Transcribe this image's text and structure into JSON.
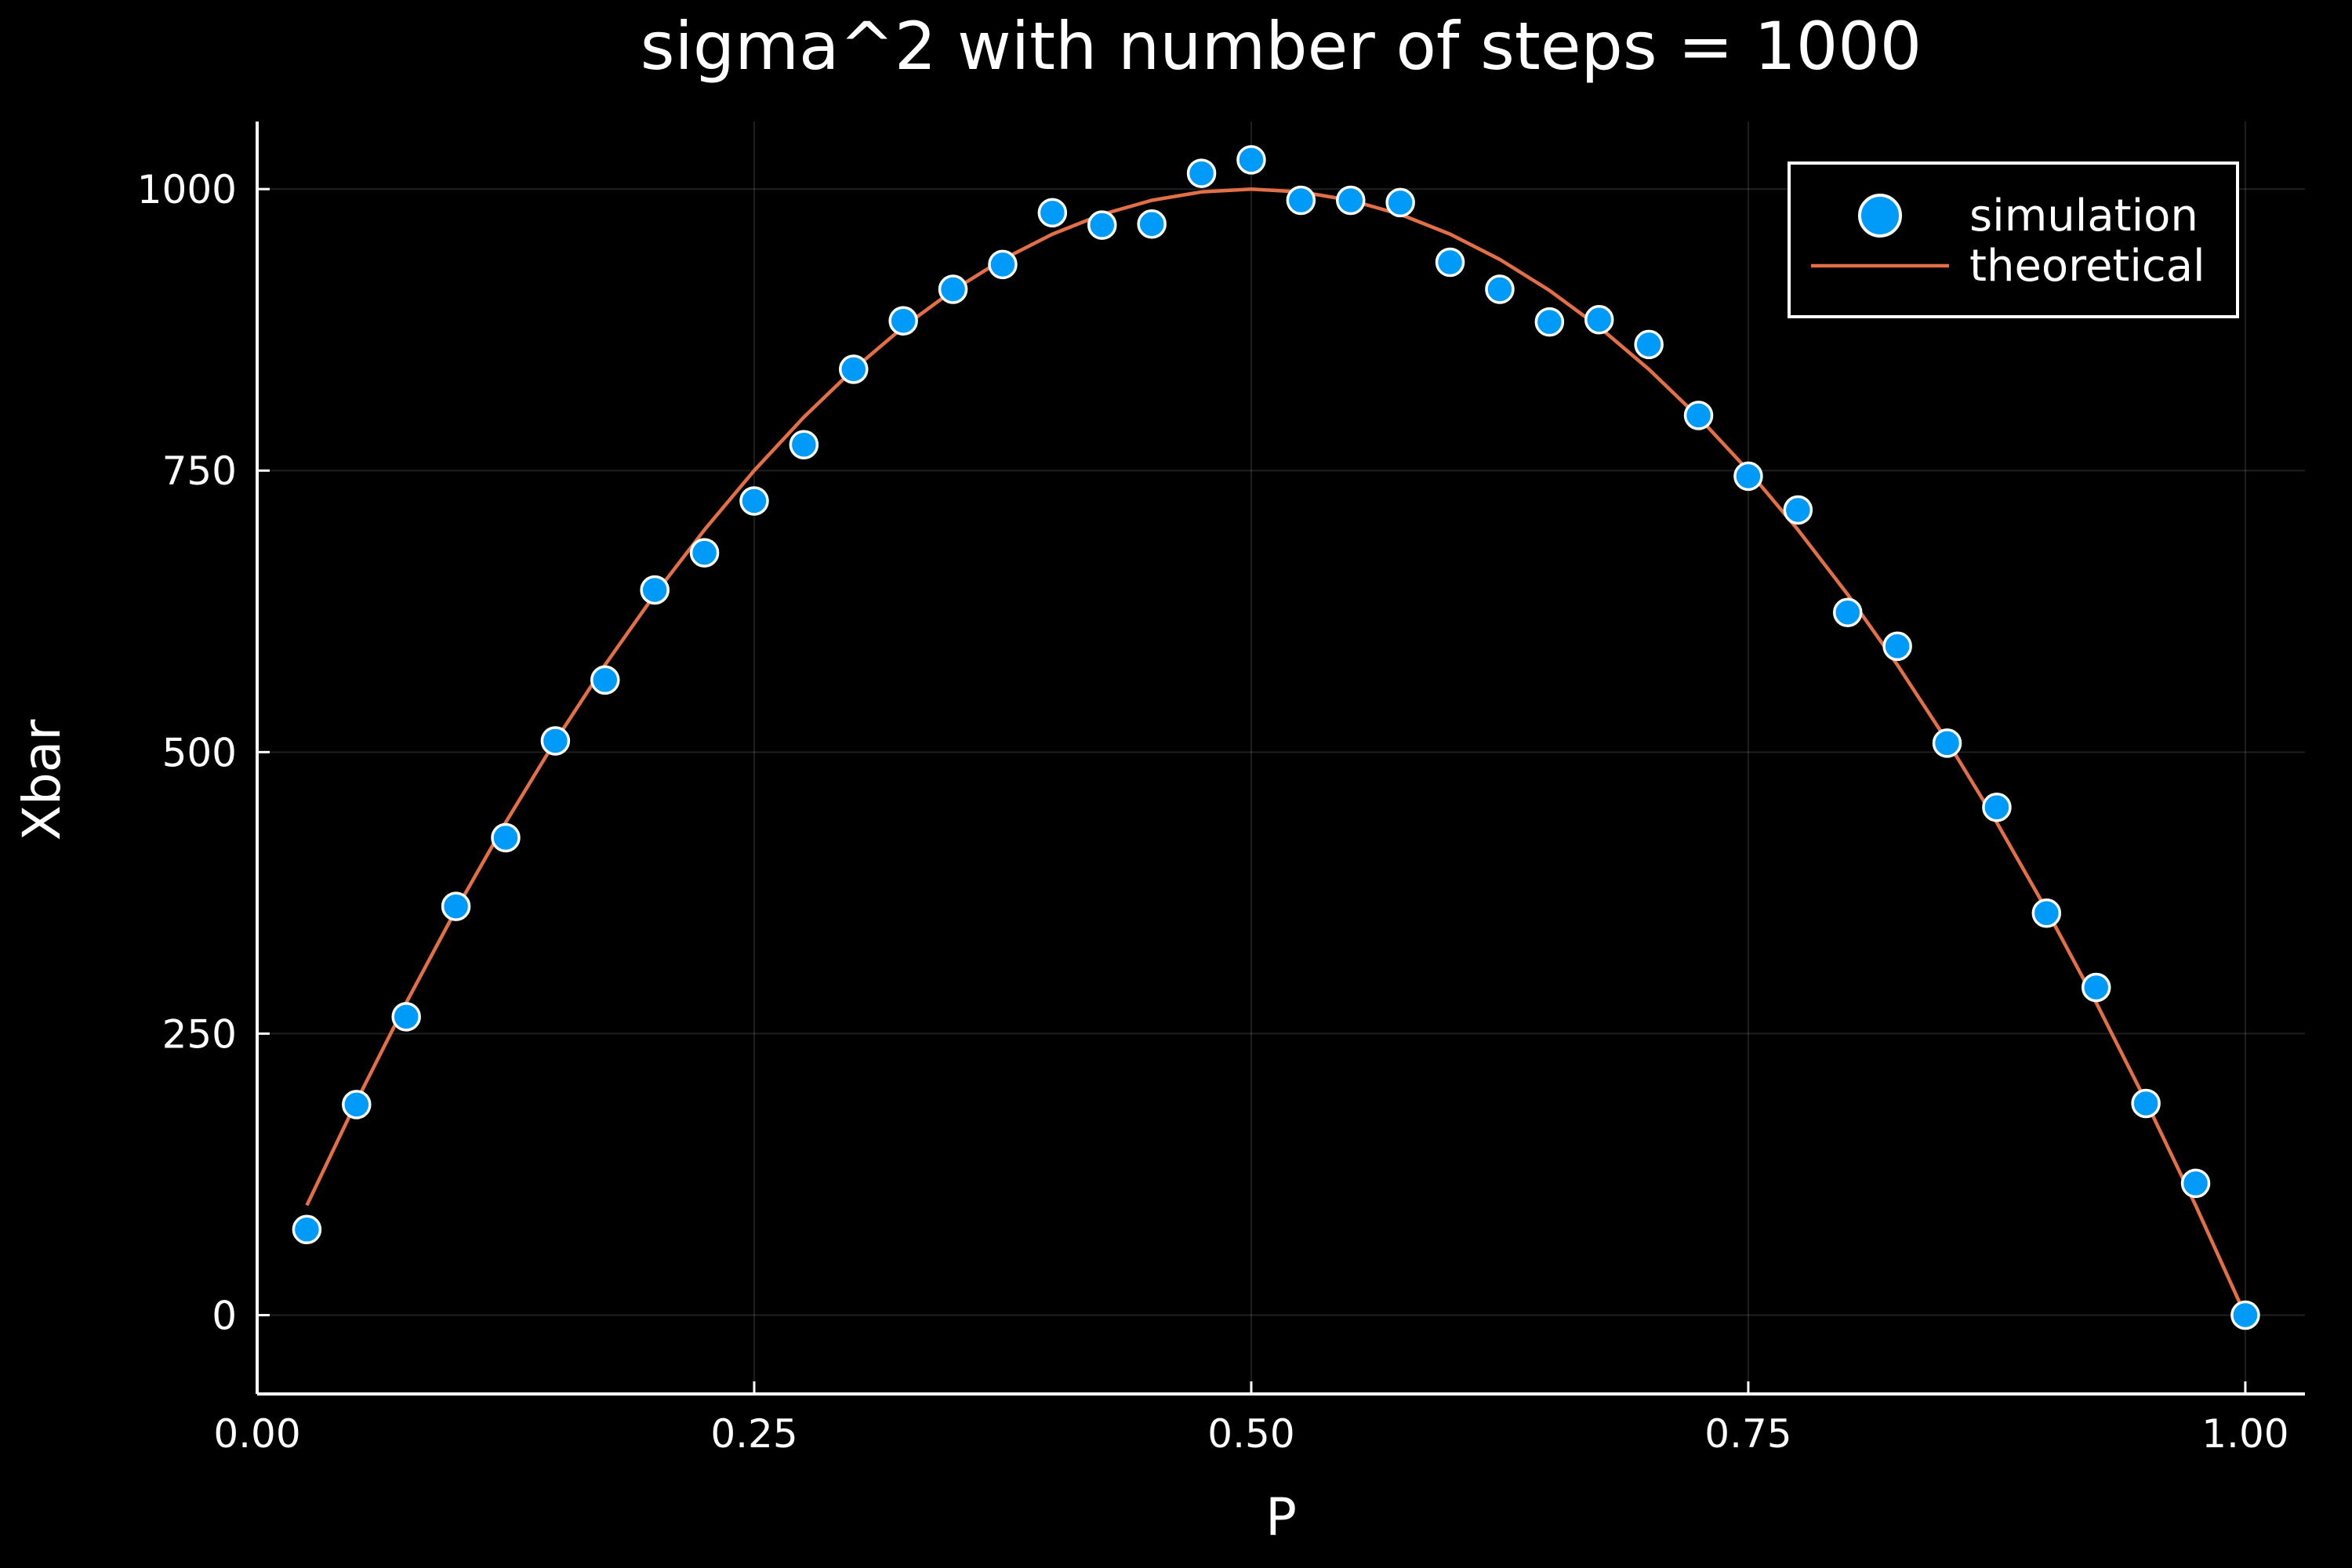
{
  "chart_data": {
    "type": "scatter",
    "title": "sigma^2 with number of steps = 1000",
    "xlabel": "P",
    "ylabel": "Xbar",
    "xlim": [
      0.0,
      1.03
    ],
    "ylim": [
      -70,
      1060
    ],
    "x_ticks": [
      0.0,
      0.25,
      0.5,
      0.75,
      1.0
    ],
    "x_tick_labels": [
      "0.00",
      "0.25",
      "0.50",
      "0.75",
      "1.00"
    ],
    "y_ticks": [
      0,
      250,
      500,
      750,
      1000
    ],
    "y_tick_labels": [
      "0",
      "250",
      "500",
      "750",
      "1000"
    ],
    "grid": true,
    "legend_position": "top-right",
    "background": "#000000",
    "series": [
      {
        "name": "simulation",
        "kind": "scatter",
        "color": "#009af9",
        "x": [
          0.025,
          0.05,
          0.075,
          0.1,
          0.125,
          0.15,
          0.175,
          0.2,
          0.225,
          0.25,
          0.275,
          0.3,
          0.325,
          0.35,
          0.375,
          0.4,
          0.425,
          0.45,
          0.475,
          0.5,
          0.525,
          0.55,
          0.575,
          0.6,
          0.625,
          0.65,
          0.675,
          0.7,
          0.725,
          0.75,
          0.775,
          0.8,
          0.825,
          0.85,
          0.875,
          0.9,
          0.925,
          0.95,
          0.975,
          1.0
        ],
        "y": [
          76,
          187,
          265,
          363,
          424,
          510,
          564,
          644,
          677,
          723,
          773,
          840,
          883,
          911,
          933,
          979,
          968,
          969,
          1014,
          1026,
          990,
          990,
          988,
          935,
          911,
          882,
          884,
          862,
          799,
          745,
          715,
          624,
          594,
          508,
          451,
          357,
          291,
          188,
          117,
          0
        ]
      },
      {
        "name": "theoretical",
        "kind": "line",
        "color": "#e26f46",
        "x": [
          0.025,
          0.05,
          0.075,
          0.1,
          0.125,
          0.15,
          0.175,
          0.2,
          0.225,
          0.25,
          0.275,
          0.3,
          0.325,
          0.35,
          0.375,
          0.4,
          0.425,
          0.45,
          0.475,
          0.5,
          0.525,
          0.55,
          0.575,
          0.6,
          0.625,
          0.65,
          0.675,
          0.7,
          0.725,
          0.75,
          0.775,
          0.8,
          0.825,
          0.85,
          0.875,
          0.9,
          0.925,
          0.95,
          0.975,
          1.0
        ],
        "y": [
          97.5,
          190,
          277.5,
          360,
          437.5,
          510,
          577.5,
          640,
          697.5,
          750,
          797.5,
          840,
          877.5,
          910,
          937.5,
          960,
          977.5,
          990,
          997.5,
          1000,
          997.5,
          990,
          977.5,
          960,
          937.5,
          910,
          877.5,
          840,
          797.5,
          750,
          697.5,
          640,
          577.5,
          510,
          437.5,
          360,
          277.5,
          190,
          97.5,
          0
        ]
      }
    ]
  }
}
